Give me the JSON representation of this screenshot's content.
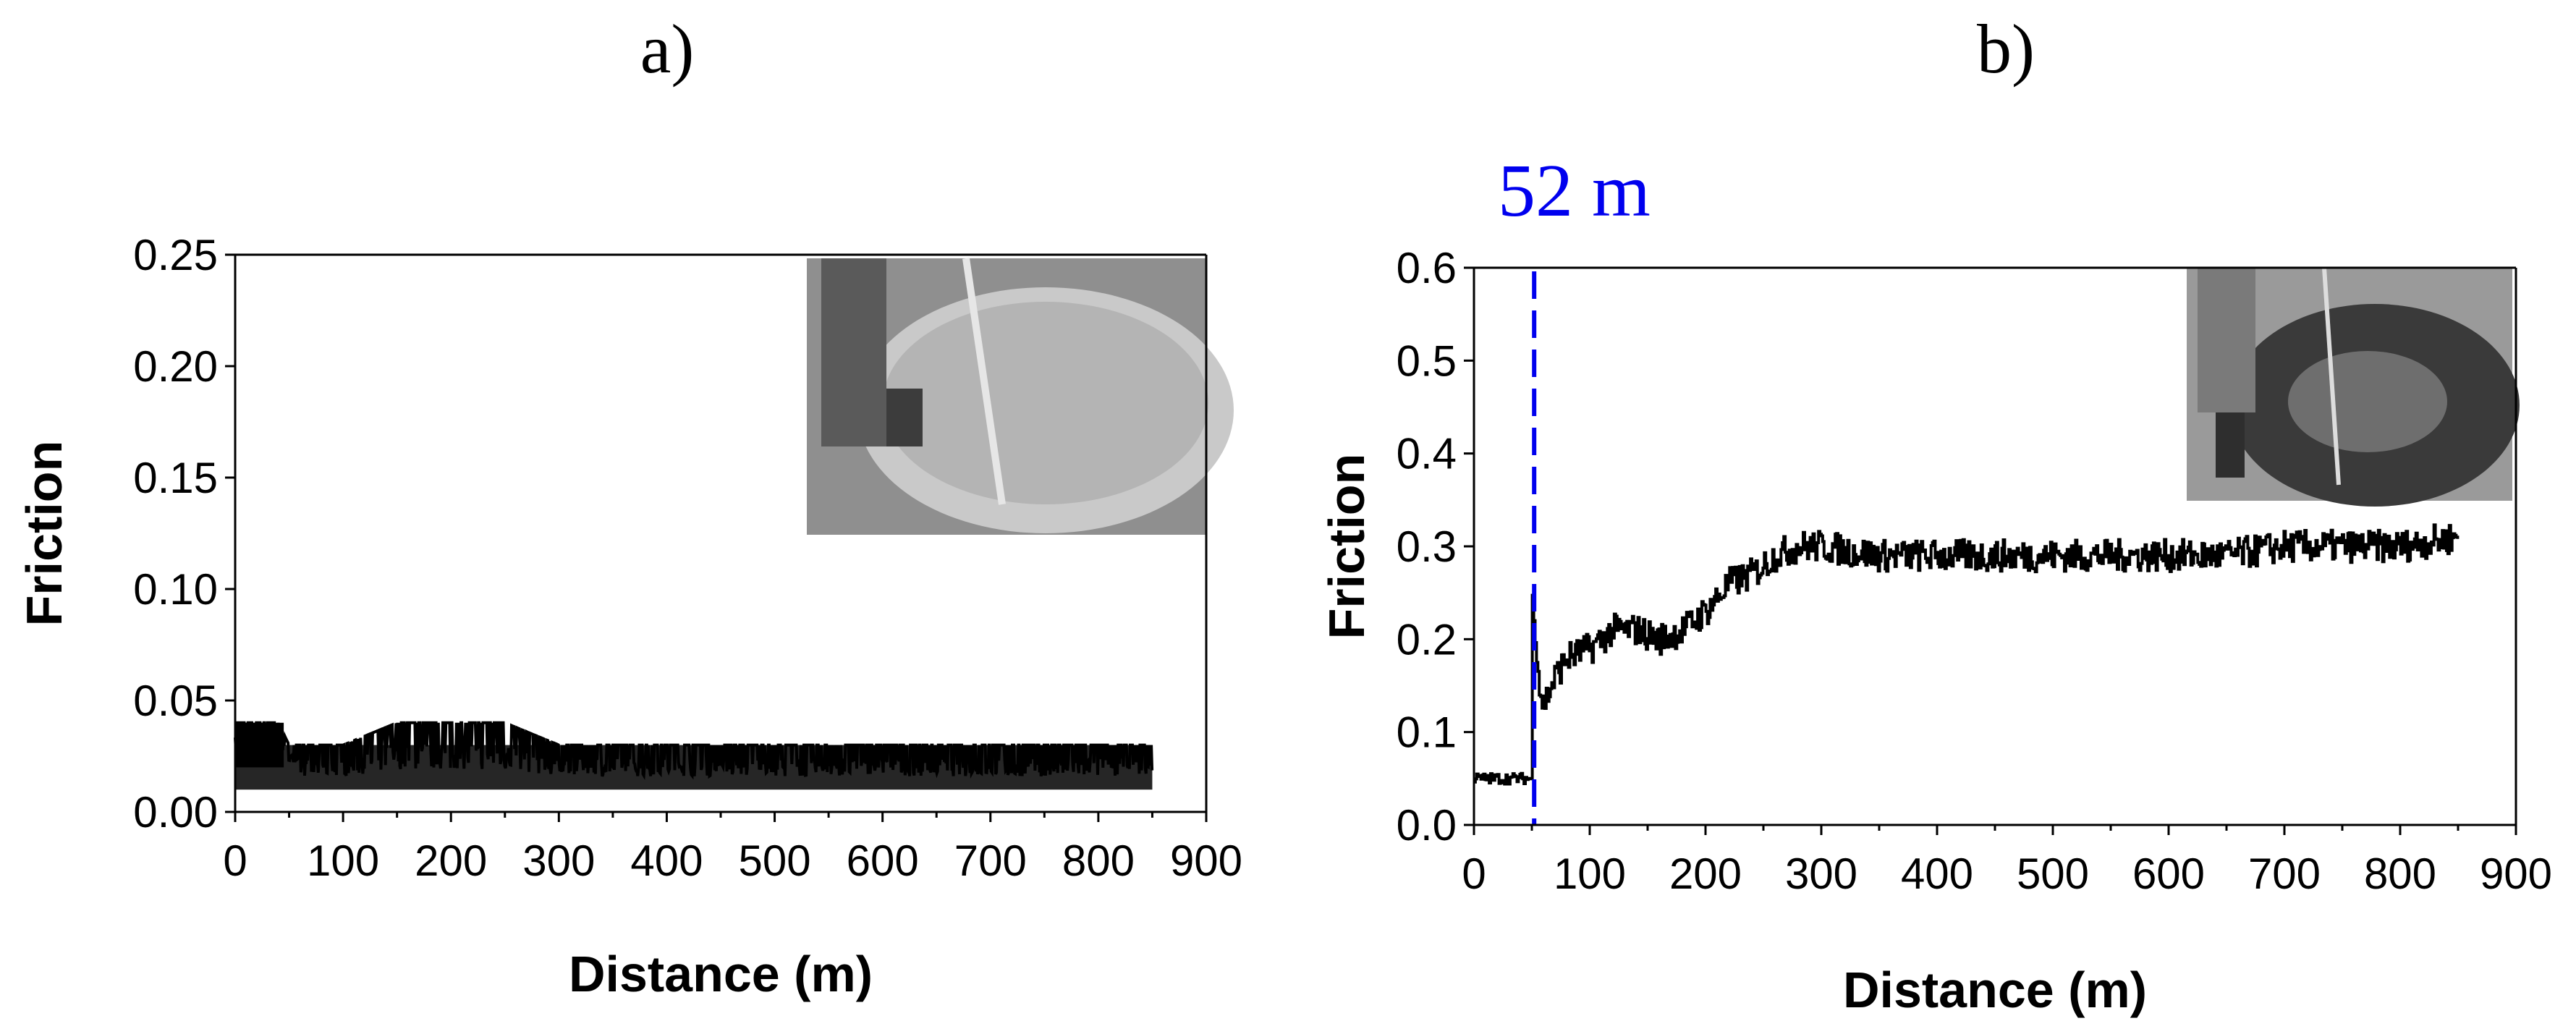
{
  "chart_data": [
    {
      "type": "line",
      "panel_label": "a)",
      "xlabel": "Distance (m)",
      "ylabel": "Friction",
      "xlim": [
        0,
        900
      ],
      "ylim": [
        0,
        0.25
      ],
      "x_ticks": [
        "0",
        "100",
        "200",
        "300",
        "400",
        "500",
        "600",
        "700",
        "800",
        "900"
      ],
      "y_ticks": [
        "0.00",
        "0.05",
        "0.10",
        "0.15",
        "0.20",
        "0.25"
      ],
      "grid": false,
      "inset_photo": "pin-on-disk test photo (top-right)",
      "series": [
        {
          "values_summary": "noisy trace; ~0.02–0.04 for 0–50 m, then ~0.01–0.03 up to 850 m",
          "x": [
            0,
            10,
            20,
            30,
            40,
            50,
            60,
            100,
            150,
            200,
            250,
            300,
            350,
            400,
            500,
            600,
            700,
            800,
            850
          ],
          "y_low": [
            0.02,
            0.02,
            0.02,
            0.02,
            0.02,
            0.02,
            0.01,
            0.01,
            0.01,
            0.01,
            0.01,
            0.01,
            0.01,
            0.01,
            0.01,
            0.01,
            0.01,
            0.01,
            0.01
          ],
          "y_high": [
            0.04,
            0.04,
            0.04,
            0.04,
            0.04,
            0.03,
            0.03,
            0.03,
            0.04,
            0.04,
            0.04,
            0.03,
            0.03,
            0.03,
            0.03,
            0.03,
            0.03,
            0.03,
            0.03
          ]
        }
      ]
    },
    {
      "type": "line",
      "panel_label": "b)",
      "xlabel": "Distance (m)",
      "ylabel": "Friction",
      "xlim": [
        0,
        900
      ],
      "ylim": [
        0,
        0.6
      ],
      "x_ticks": [
        "0",
        "100",
        "200",
        "300",
        "400",
        "500",
        "600",
        "700",
        "800",
        "900"
      ],
      "y_ticks": [
        "0.0",
        "0.1",
        "0.2",
        "0.3",
        "0.4",
        "0.5",
        "0.6"
      ],
      "grid": false,
      "inset_photo": "pin-on-disk test photo (top-right)",
      "annotation": {
        "label": "52 m",
        "x": 52,
        "style": "dashed vertical line",
        "color": "#0000ee"
      },
      "series": [
        {
          "x": [
            0,
            10,
            20,
            30,
            40,
            50,
            52,
            55,
            60,
            70,
            80,
            100,
            120,
            140,
            160,
            180,
            200,
            220,
            240,
            260,
            280,
            300,
            350,
            400,
            450,
            500,
            550,
            600,
            650,
            700,
            750,
            800,
            850
          ],
          "y": [
            0.05,
            0.05,
            0.05,
            0.05,
            0.05,
            0.05,
            0.25,
            0.15,
            0.13,
            0.16,
            0.18,
            0.19,
            0.21,
            0.21,
            0.2,
            0.21,
            0.23,
            0.26,
            0.27,
            0.29,
            0.3,
            0.3,
            0.29,
            0.29,
            0.29,
            0.29,
            0.29,
            0.29,
            0.29,
            0.3,
            0.3,
            0.3,
            0.31
          ]
        }
      ]
    }
  ]
}
